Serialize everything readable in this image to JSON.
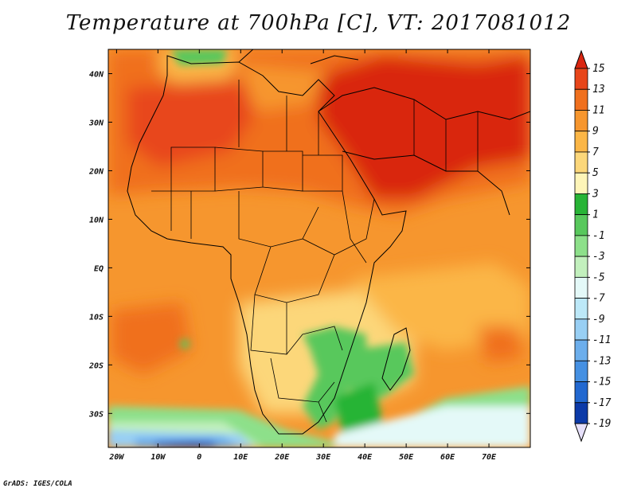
{
  "title": "Temperature at 700hPa [C], VT: 2017081012",
  "credit": "GrADS: IGES/COLA",
  "map": {
    "region": "Africa",
    "lon_range": [
      -22,
      80
    ],
    "lat_range": [
      -37,
      45
    ],
    "lon_ticks": [
      {
        "value": -20,
        "label": "20W"
      },
      {
        "value": -10,
        "label": "10W"
      },
      {
        "value": 0,
        "label": "0"
      },
      {
        "value": 10,
        "label": "10E"
      },
      {
        "value": 20,
        "label": "20E"
      },
      {
        "value": 30,
        "label": "30E"
      },
      {
        "value": 40,
        "label": "40E"
      },
      {
        "value": 50,
        "label": "50E"
      },
      {
        "value": 60,
        "label": "60E"
      },
      {
        "value": 70,
        "label": "70E"
      }
    ],
    "lat_ticks": [
      {
        "value": 40,
        "label": "40N"
      },
      {
        "value": 30,
        "label": "30N"
      },
      {
        "value": 20,
        "label": "20N"
      },
      {
        "value": 10,
        "label": "10N"
      },
      {
        "value": 0,
        "label": "EQ"
      },
      {
        "value": -10,
        "label": "10S"
      },
      {
        "value": -20,
        "label": "20S"
      },
      {
        "value": -30,
        "label": "30S"
      }
    ]
  },
  "colorbar": {
    "labels": [
      "15",
      "13",
      "11",
      "9",
      "7",
      "5",
      "3",
      "1",
      "-1",
      "-3",
      "-5",
      "-7",
      "-9",
      "-11",
      "-13",
      "-15",
      "-17",
      "-19"
    ],
    "colors": [
      "#d92510",
      "#e8461a",
      "#f0701e",
      "#f6962e",
      "#fbb646",
      "#fcd77a",
      "#fef5b8",
      "#28b436",
      "#58c85c",
      "#8de08a",
      "#c2f0bd",
      "#e4f9f8",
      "#bce8f8",
      "#98cff4",
      "#6caeec",
      "#4590e2",
      "#2268d0",
      "#0c3aa8",
      "#0a1472"
    ]
  }
}
